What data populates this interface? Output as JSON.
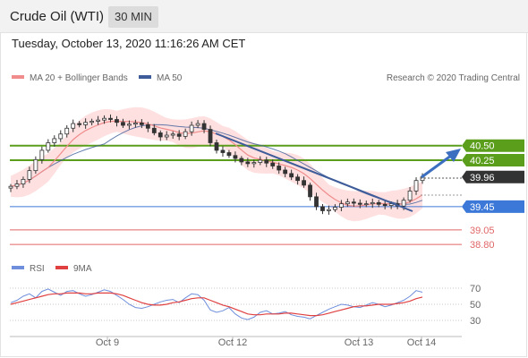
{
  "header": {
    "instrument": "Crude Oil (WTI)",
    "timeframe": "30 MIN"
  },
  "timestamp": "Tuesday, October 13, 2020 11:16:26 AM CET",
  "colors": {
    "ma20": "#f08c8c",
    "ma50": "#3d5c99",
    "bands_fill": "#ffd6d6",
    "candle": "#333333",
    "resistance": "#5a9e1c",
    "pivot": "#3c78d8",
    "support": "#e06666",
    "last": "#333333",
    "rsi": "#6f8fdc",
    "rsi_ma": "#e04040"
  },
  "chart_data": [
    {
      "type": "line",
      "subtype": "candlestick",
      "legend": [
        {
          "label": "MA 20 + Bollinger Bands",
          "color": "#f08c8c"
        },
        {
          "label": "MA 50",
          "color": "#3d5c99"
        }
      ],
      "credit": "Research © 2020 Trading Central",
      "x_ticks": [
        "Oct 9",
        "Oct 12",
        "Oct 13",
        "Oct 14"
      ],
      "ylim": [
        38.6,
        41.1
      ],
      "price_series": [
        39.8,
        39.84,
        39.92,
        40.07,
        40.26,
        40.42,
        40.55,
        40.62,
        40.7,
        40.8,
        40.88,
        40.86,
        40.9,
        40.92,
        40.94,
        40.97,
        40.95,
        40.9,
        40.85,
        40.87,
        40.89,
        40.86,
        40.8,
        40.72,
        40.65,
        40.68,
        40.7,
        40.66,
        40.74,
        40.85,
        40.88,
        40.78,
        40.55,
        40.42,
        40.38,
        40.33,
        40.28,
        40.22,
        40.19,
        40.21,
        40.25,
        40.2,
        40.15,
        40.08,
        40.02,
        39.96,
        39.9,
        39.82,
        39.62,
        39.45,
        39.38,
        39.4,
        39.44,
        39.5,
        39.53,
        39.51,
        39.49,
        39.5,
        39.52,
        39.49,
        39.47,
        39.5,
        39.46,
        39.56,
        39.72,
        39.9,
        39.96
      ],
      "levels": [
        {
          "label": "40.50",
          "value": 40.5,
          "kind": "resistance"
        },
        {
          "label": "40.25",
          "value": 40.25,
          "kind": "resistance"
        },
        {
          "label": "39.96",
          "value": 39.96,
          "kind": "last"
        },
        {
          "label": "39.45",
          "value": 39.45,
          "kind": "pivot"
        },
        {
          "label": "39.05",
          "value": 39.05,
          "kind": "support"
        },
        {
          "label": "38.80",
          "value": 38.8,
          "kind": "support"
        }
      ]
    },
    {
      "type": "line",
      "legend": [
        {
          "label": "RSI",
          "color": "#6f8fdc"
        },
        {
          "label": "9MA",
          "color": "#e04040"
        }
      ],
      "y_ticks": [
        "70",
        "50",
        "30"
      ],
      "ylim": [
        20,
        80
      ],
      "rsi": [
        52,
        55,
        60,
        63,
        58,
        66,
        69,
        65,
        61,
        66,
        67,
        63,
        60,
        62,
        65,
        68,
        66,
        61,
        56,
        50,
        46,
        45,
        47,
        50,
        53,
        55,
        56,
        52,
        58,
        63,
        62,
        55,
        43,
        40,
        42,
        46,
        38,
        33,
        31,
        34,
        40,
        42,
        38,
        39,
        41,
        37,
        35,
        34,
        32,
        36,
        40,
        44,
        47,
        50,
        49,
        47,
        46,
        49,
        52,
        50,
        47,
        49,
        52,
        55,
        60,
        67,
        65
      ],
      "rsi_ma": [
        50,
        52,
        54,
        56,
        58,
        60,
        62,
        63,
        63,
        64,
        64,
        64,
        63,
        63,
        64,
        64,
        64,
        63,
        61,
        58,
        55,
        52,
        50,
        49,
        49,
        50,
        52,
        53,
        55,
        57,
        58,
        58,
        55,
        52,
        49,
        47,
        44,
        41,
        38,
        37,
        37,
        38,
        38,
        38,
        39,
        39,
        38,
        37,
        36,
        36,
        37,
        39,
        41,
        43,
        45,
        47,
        48,
        48,
        49,
        50,
        50,
        50,
        51,
        52,
        54,
        57,
        59
      ]
    }
  ]
}
